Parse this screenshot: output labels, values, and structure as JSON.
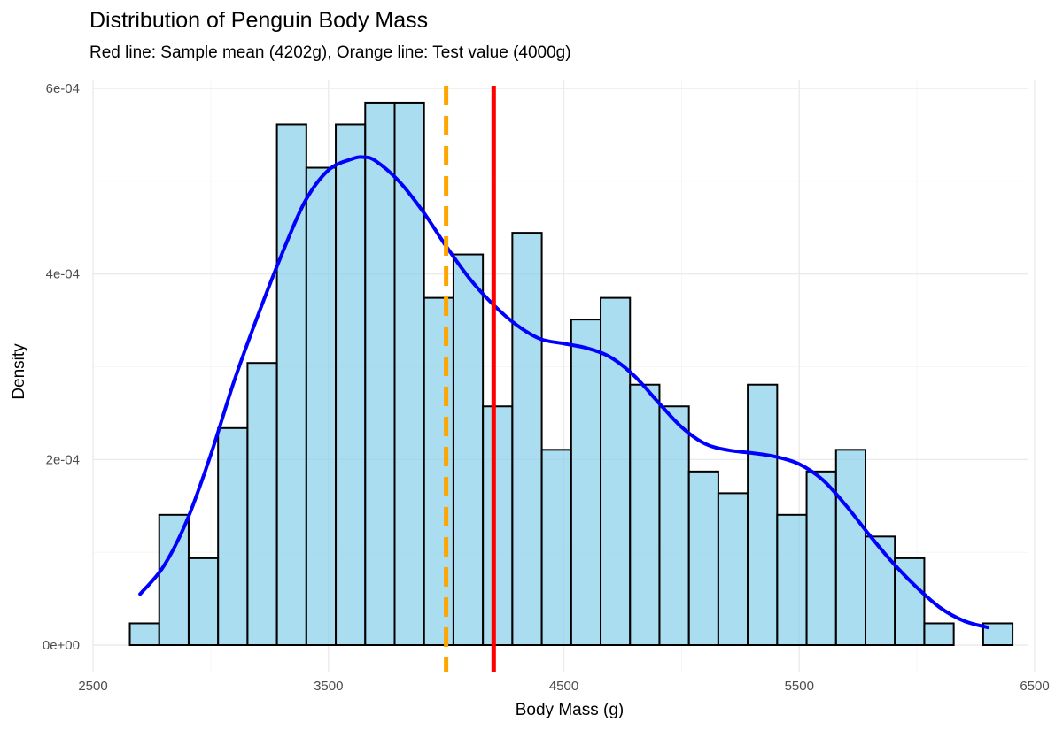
{
  "chart_data": {
    "type": "bar",
    "title": "Distribution of Penguin Body Mass",
    "subtitle": "Red line: Sample mean (4202g), Orange line: Test value (4000g)",
    "xlabel": "Body Mass (g)",
    "ylabel": "Density",
    "xlim": [
      2500,
      6500
    ],
    "ylim": [
      0,
      0.0006
    ],
    "x_ticks": [
      2500,
      3500,
      4500,
      5500,
      6500
    ],
    "y_ticks": [
      0,
      0.0002,
      0.0004,
      0.0006
    ],
    "x_tick_labels": [
      "2500",
      "3500",
      "4500",
      "5500",
      "6500"
    ],
    "y_tick_labels": [
      "0e+00",
      "2e-04",
      "4e-04",
      "6e-04"
    ],
    "grid": true,
    "bin_width": 125,
    "bins": [
      {
        "start": 2656.25,
        "end": 2781.25,
        "density": 2.34e-05
      },
      {
        "start": 2781.25,
        "end": 2906.25,
        "density": 0.0001404
      },
      {
        "start": 2906.25,
        "end": 3031.25,
        "density": 9.36e-05
      },
      {
        "start": 3031.25,
        "end": 3156.25,
        "density": 0.0002339
      },
      {
        "start": 3156.25,
        "end": 3281.25,
        "density": 0.0003041
      },
      {
        "start": 3281.25,
        "end": 3406.25,
        "density": 0.0005614
      },
      {
        "start": 3406.25,
        "end": 3531.25,
        "density": 0.0005146
      },
      {
        "start": 3531.25,
        "end": 3656.25,
        "density": 0.0005614
      },
      {
        "start": 3656.25,
        "end": 3781.25,
        "density": 0.0005848
      },
      {
        "start": 3781.25,
        "end": 3906.25,
        "density": 0.0005848
      },
      {
        "start": 3906.25,
        "end": 4031.25,
        "density": 0.0003743
      },
      {
        "start": 4031.25,
        "end": 4156.25,
        "density": 0.0004211
      },
      {
        "start": 4156.25,
        "end": 4281.25,
        "density": 0.0002573
      },
      {
        "start": 4281.25,
        "end": 4406.25,
        "density": 0.0004444
      },
      {
        "start": 4406.25,
        "end": 4531.25,
        "density": 0.0002105
      },
      {
        "start": 4531.25,
        "end": 4656.25,
        "density": 0.0003509
      },
      {
        "start": 4656.25,
        "end": 4781.25,
        "density": 0.0003743
      },
      {
        "start": 4781.25,
        "end": 4906.25,
        "density": 0.0002807
      },
      {
        "start": 4906.25,
        "end": 5031.25,
        "density": 0.0002573
      },
      {
        "start": 5031.25,
        "end": 5156.25,
        "density": 0.0001871
      },
      {
        "start": 5156.25,
        "end": 5281.25,
        "density": 0.0001637
      },
      {
        "start": 5281.25,
        "end": 5406.25,
        "density": 0.0002807
      },
      {
        "start": 5406.25,
        "end": 5531.25,
        "density": 0.0001404
      },
      {
        "start": 5531.25,
        "end": 5656.25,
        "density": 0.0001871
      },
      {
        "start": 5656.25,
        "end": 5781.25,
        "density": 0.0002105
      },
      {
        "start": 5781.25,
        "end": 5906.25,
        "density": 0.000117
      },
      {
        "start": 5906.25,
        "end": 6031.25,
        "density": 9.36e-05
      },
      {
        "start": 6031.25,
        "end": 6156.25,
        "density": 2.34e-05
      },
      {
        "start": 6156.25,
        "end": 6281.25,
        "density": 0.0
      },
      {
        "start": 6281.25,
        "end": 6406.25,
        "density": 2.34e-05
      }
    ],
    "density_curve": {
      "x": [
        2700,
        2800,
        2900,
        3000,
        3100,
        3200,
        3300,
        3400,
        3500,
        3600,
        3650,
        3700,
        3800,
        3900,
        4000,
        4100,
        4200,
        4300,
        4400,
        4500,
        4600,
        4700,
        4800,
        4900,
        5000,
        5100,
        5200,
        5300,
        5400,
        5500,
        5600,
        5700,
        5800,
        5900,
        6000,
        6100,
        6200,
        6300
      ],
      "y": [
        5.5e-05,
        8.5e-05,
        0.000135,
        0.000205,
        0.000285,
        0.000355,
        0.00042,
        0.000478,
        0.000512,
        0.000524,
        0.000526,
        0.000522,
        0.0005,
        0.000468,
        0.00043,
        0.000395,
        0.000367,
        0.000345,
        0.00033,
        0.000325,
        0.00032,
        0.00031,
        0.00029,
        0.000262,
        0.000235,
        0.000217,
        0.00021,
        0.000207,
        0.000203,
        0.000195,
        0.000178,
        0.00015,
        0.000118,
        8.8e-05,
        6.2e-05,
        4e-05,
        2.6e-05,
        1.9e-05
      ]
    },
    "reference_lines": [
      {
        "name": "Sample mean",
        "x": 4202,
        "color": "#ff0000",
        "style": "solid"
      },
      {
        "name": "Test value",
        "x": 4000,
        "color": "#ffa500",
        "style": "dashed"
      }
    ],
    "colors": {
      "bar_fill": "#87ceeb",
      "bar_stroke": "#000000",
      "density_line": "#0000ff"
    }
  }
}
